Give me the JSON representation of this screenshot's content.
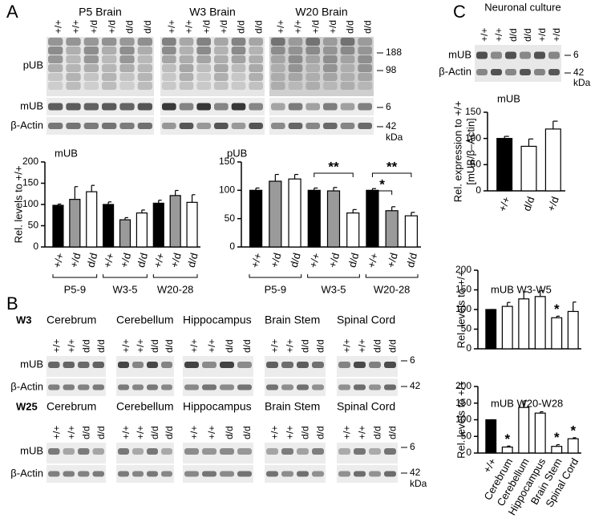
{
  "chart_data": [
    {
      "type": "bar",
      "title": "mUB",
      "ylabel": [
        "Rel. levels to +/+"
      ],
      "categories": [
        "+/+",
        "+/d",
        "d/d",
        "+/+",
        "+/d",
        "d/d",
        "+/+",
        "+/d",
        "d/d"
      ],
      "groups": [
        "P5-9",
        "W3-5",
        "W20-28"
      ],
      "values": [
        98,
        112,
        130,
        100,
        64,
        80,
        103,
        121,
        105
      ],
      "errors": [
        3,
        30,
        15,
        6,
        5,
        7,
        7,
        12,
        18
      ],
      "colors": [
        "#000000",
        "#9a9a9a",
        "#ffffff",
        "#000000",
        "#9a9a9a",
        "#ffffff",
        "#000000",
        "#9a9a9a",
        "#ffffff"
      ],
      "ylim": [
        0,
        200
      ],
      "yticks": [
        0,
        50,
        100,
        150,
        200
      ]
    },
    {
      "type": "bar",
      "title": "pUB",
      "categories": [
        "+/+",
        "+/d",
        "d/d",
        "+/+",
        "+/d",
        "d/d",
        "+/+",
        "+/d",
        "d/d"
      ],
      "groups": [
        "P5-9",
        "W3-5",
        "W20-28"
      ],
      "values": [
        100,
        116,
        120,
        100,
        99,
        60,
        100,
        64,
        55
      ],
      "errors": [
        4,
        12,
        8,
        4,
        6,
        6,
        3,
        7,
        6
      ],
      "colors": [
        "#000000",
        "#9a9a9a",
        "#ffffff",
        "#000000",
        "#9a9a9a",
        "#ffffff",
        "#000000",
        "#9a9a9a",
        "#ffffff"
      ],
      "annotations": [
        "**",
        "*",
        "**"
      ],
      "ylim": [
        0,
        150
      ],
      "yticks": [
        0,
        50,
        100,
        150
      ]
    },
    {
      "type": "bar",
      "title": "mUB",
      "ylabel": [
        "Rel. expression to +/+",
        "[mUB/β–Actin]"
      ],
      "categories": [
        "+/+",
        "d/d",
        "+/d"
      ],
      "values": [
        100,
        85,
        118
      ],
      "errors": [
        4,
        14,
        15
      ],
      "colors": [
        "#000000",
        "#ffffff",
        "#ffffff"
      ],
      "ylim": [
        0,
        150
      ],
      "yticks": [
        0,
        50,
        100,
        150
      ]
    },
    {
      "type": "bar",
      "title": "mUB W3-W5",
      "ylabel": [
        "Rel. levels to +/+"
      ],
      "categories": [
        null,
        null,
        null,
        null,
        null,
        null
      ],
      "values": [
        100,
        108,
        127,
        133,
        79,
        95
      ],
      "errors": [
        0,
        10,
        18,
        15,
        4,
        24
      ],
      "colors": [
        "#000000",
        "#ffffff",
        "#ffffff",
        "#ffffff",
        "#ffffff",
        "#ffffff"
      ],
      "annotations": [
        "*"
      ],
      "ylim": [
        0,
        200
      ],
      "yticks": [
        0,
        50,
        100,
        150,
        200
      ]
    },
    {
      "type": "bar",
      "title": "mUB W20-W28",
      "ylabel": [
        "Rel. levels to +/+"
      ],
      "categories": [
        "+/+",
        "Cerebrum",
        "Cerebellum",
        "Hippocampus",
        "Brain Stem",
        "Spinal Cord"
      ],
      "values": [
        100,
        18,
        137,
        120,
        20,
        43
      ],
      "errors": [
        0,
        3,
        20,
        4,
        5,
        3
      ],
      "colors": [
        "#000000",
        "#ffffff",
        "#ffffff",
        "#ffffff",
        "#ffffff",
        "#ffffff"
      ],
      "annotations": [
        "*",
        "*",
        "*"
      ],
      "ylim": [
        0,
        200
      ],
      "yticks": [
        0,
        50,
        100,
        150,
        200
      ]
    }
  ],
  "blots": {
    "A": {
      "label": "A",
      "titles": [
        "P5 Brain",
        "W3 Brain",
        "W20 Brain"
      ],
      "lanes": [
        "+/+",
        "+/+",
        "+/d",
        "+/d",
        "d/d",
        "d/d"
      ],
      "rows": [
        "pUB",
        "mUB",
        "β-Actin"
      ],
      "markers": [
        188,
        98,
        6,
        42
      ],
      "unit": "kDa"
    },
    "B": {
      "label": "B",
      "ages": [
        "W3",
        "W25"
      ],
      "titles": [
        "Cerebrum",
        "Cerebellum",
        "Hippocampus",
        "Brain Stem",
        "Spinal Cord"
      ],
      "lanes": [
        "+/+",
        "+/+",
        "d/d",
        "d/d"
      ],
      "rows": [
        "mUB",
        "β-Actin"
      ],
      "markers": [
        6,
        42
      ],
      "unit": "kDa"
    },
    "C": {
      "label": "C",
      "title": "Neuronal culture",
      "lanes": [
        "+/+",
        "+/+",
        "d/d",
        "d/d",
        "+/d",
        "+/d"
      ],
      "rows": [
        "mUB",
        "β-Actin"
      ],
      "markers": [
        6,
        42
      ],
      "unit": "kDa"
    }
  }
}
